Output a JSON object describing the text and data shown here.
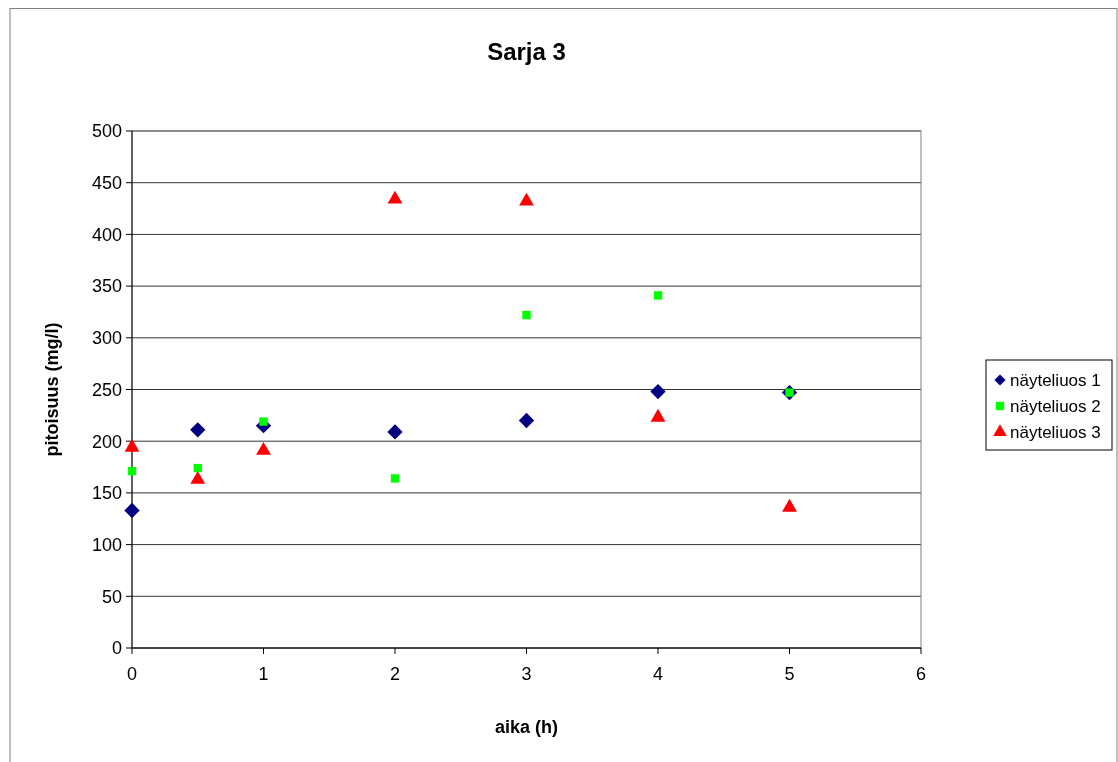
{
  "chart_data": {
    "type": "scatter",
    "title": "Sarja 3",
    "xlabel": "aika (h)",
    "ylabel": "pitoisuus (mg/l)",
    "xlim": [
      0,
      6
    ],
    "xticks": [
      0,
      1,
      2,
      3,
      4,
      5,
      6
    ],
    "ylim": [
      0,
      500
    ],
    "yticks": [
      0,
      50,
      100,
      150,
      200,
      250,
      300,
      350,
      400,
      450,
      500
    ],
    "grid": "y",
    "legend": "right",
    "x": [
      0,
      0.5,
      1,
      2,
      3,
      4,
      5
    ],
    "series": [
      {
        "name": "näyteliuos 1",
        "color": "#000080",
        "marker": "diamond",
        "values": [
          133,
          211,
          215,
          209,
          220,
          248,
          247
        ]
      },
      {
        "name": "näyteliuos 2",
        "color": "#00ff00",
        "marker": "square",
        "values": [
          171,
          174,
          219,
          164,
          322,
          341,
          247
        ]
      },
      {
        "name": "näyteliuos 3",
        "color": "#ff0000",
        "marker": "triangle",
        "values": [
          194,
          163,
          191,
          434,
          432,
          223,
          136
        ]
      }
    ]
  }
}
